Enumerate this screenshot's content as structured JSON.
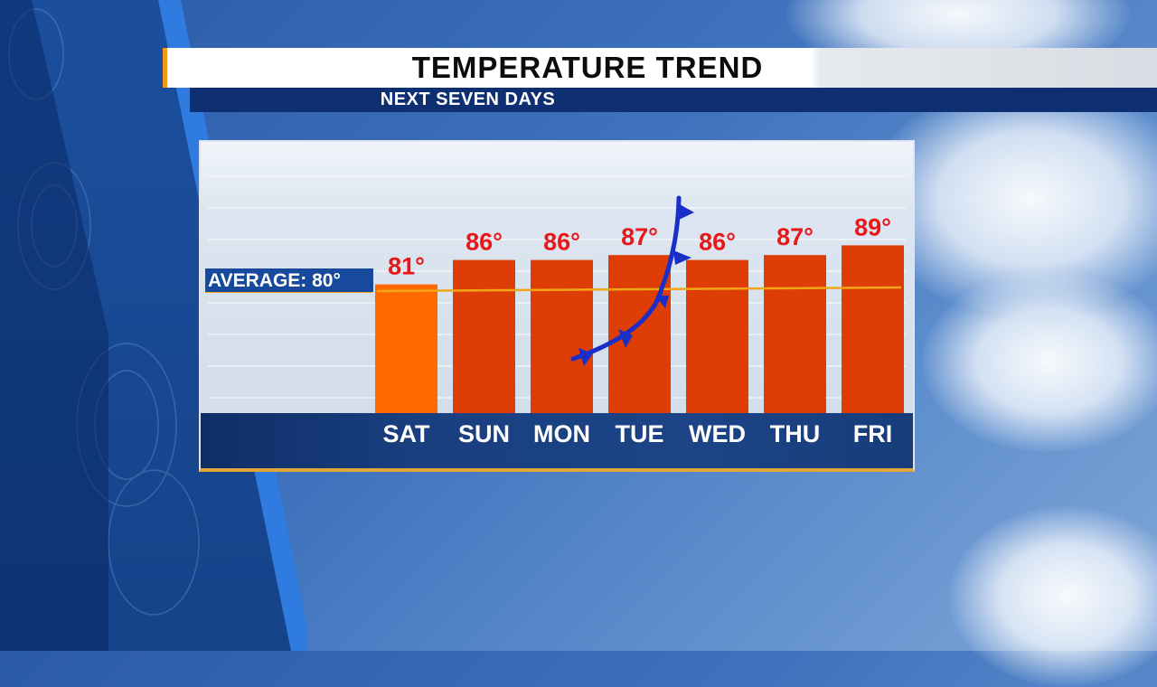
{
  "header": {
    "title": "TEMPERATURE TREND",
    "subtitle": "NEXT SEVEN DAYS"
  },
  "colors": {
    "bar_first": "#ff6a00",
    "bar": "#de3e06",
    "average_line": "#f2a516",
    "value_text": "#e8171a",
    "front": "#1a2fc8"
  },
  "chart_data": {
    "type": "bar",
    "title": "TEMPERATURE TREND",
    "subtitle": "NEXT SEVEN DAYS",
    "categories": [
      "SAT",
      "SUN",
      "MON",
      "TUE",
      "WED",
      "THU",
      "FRI"
    ],
    "values": [
      81,
      86,
      86,
      87,
      86,
      87,
      89
    ],
    "value_labels": [
      "81°",
      "86°",
      "86°",
      "87°",
      "86°",
      "87°",
      "89°"
    ],
    "average": 80,
    "average_label": "AVERAGE: 80°",
    "annotations": [
      "cold-front symbol crossing MON–TUE"
    ],
    "grid": true,
    "legend": "none"
  }
}
